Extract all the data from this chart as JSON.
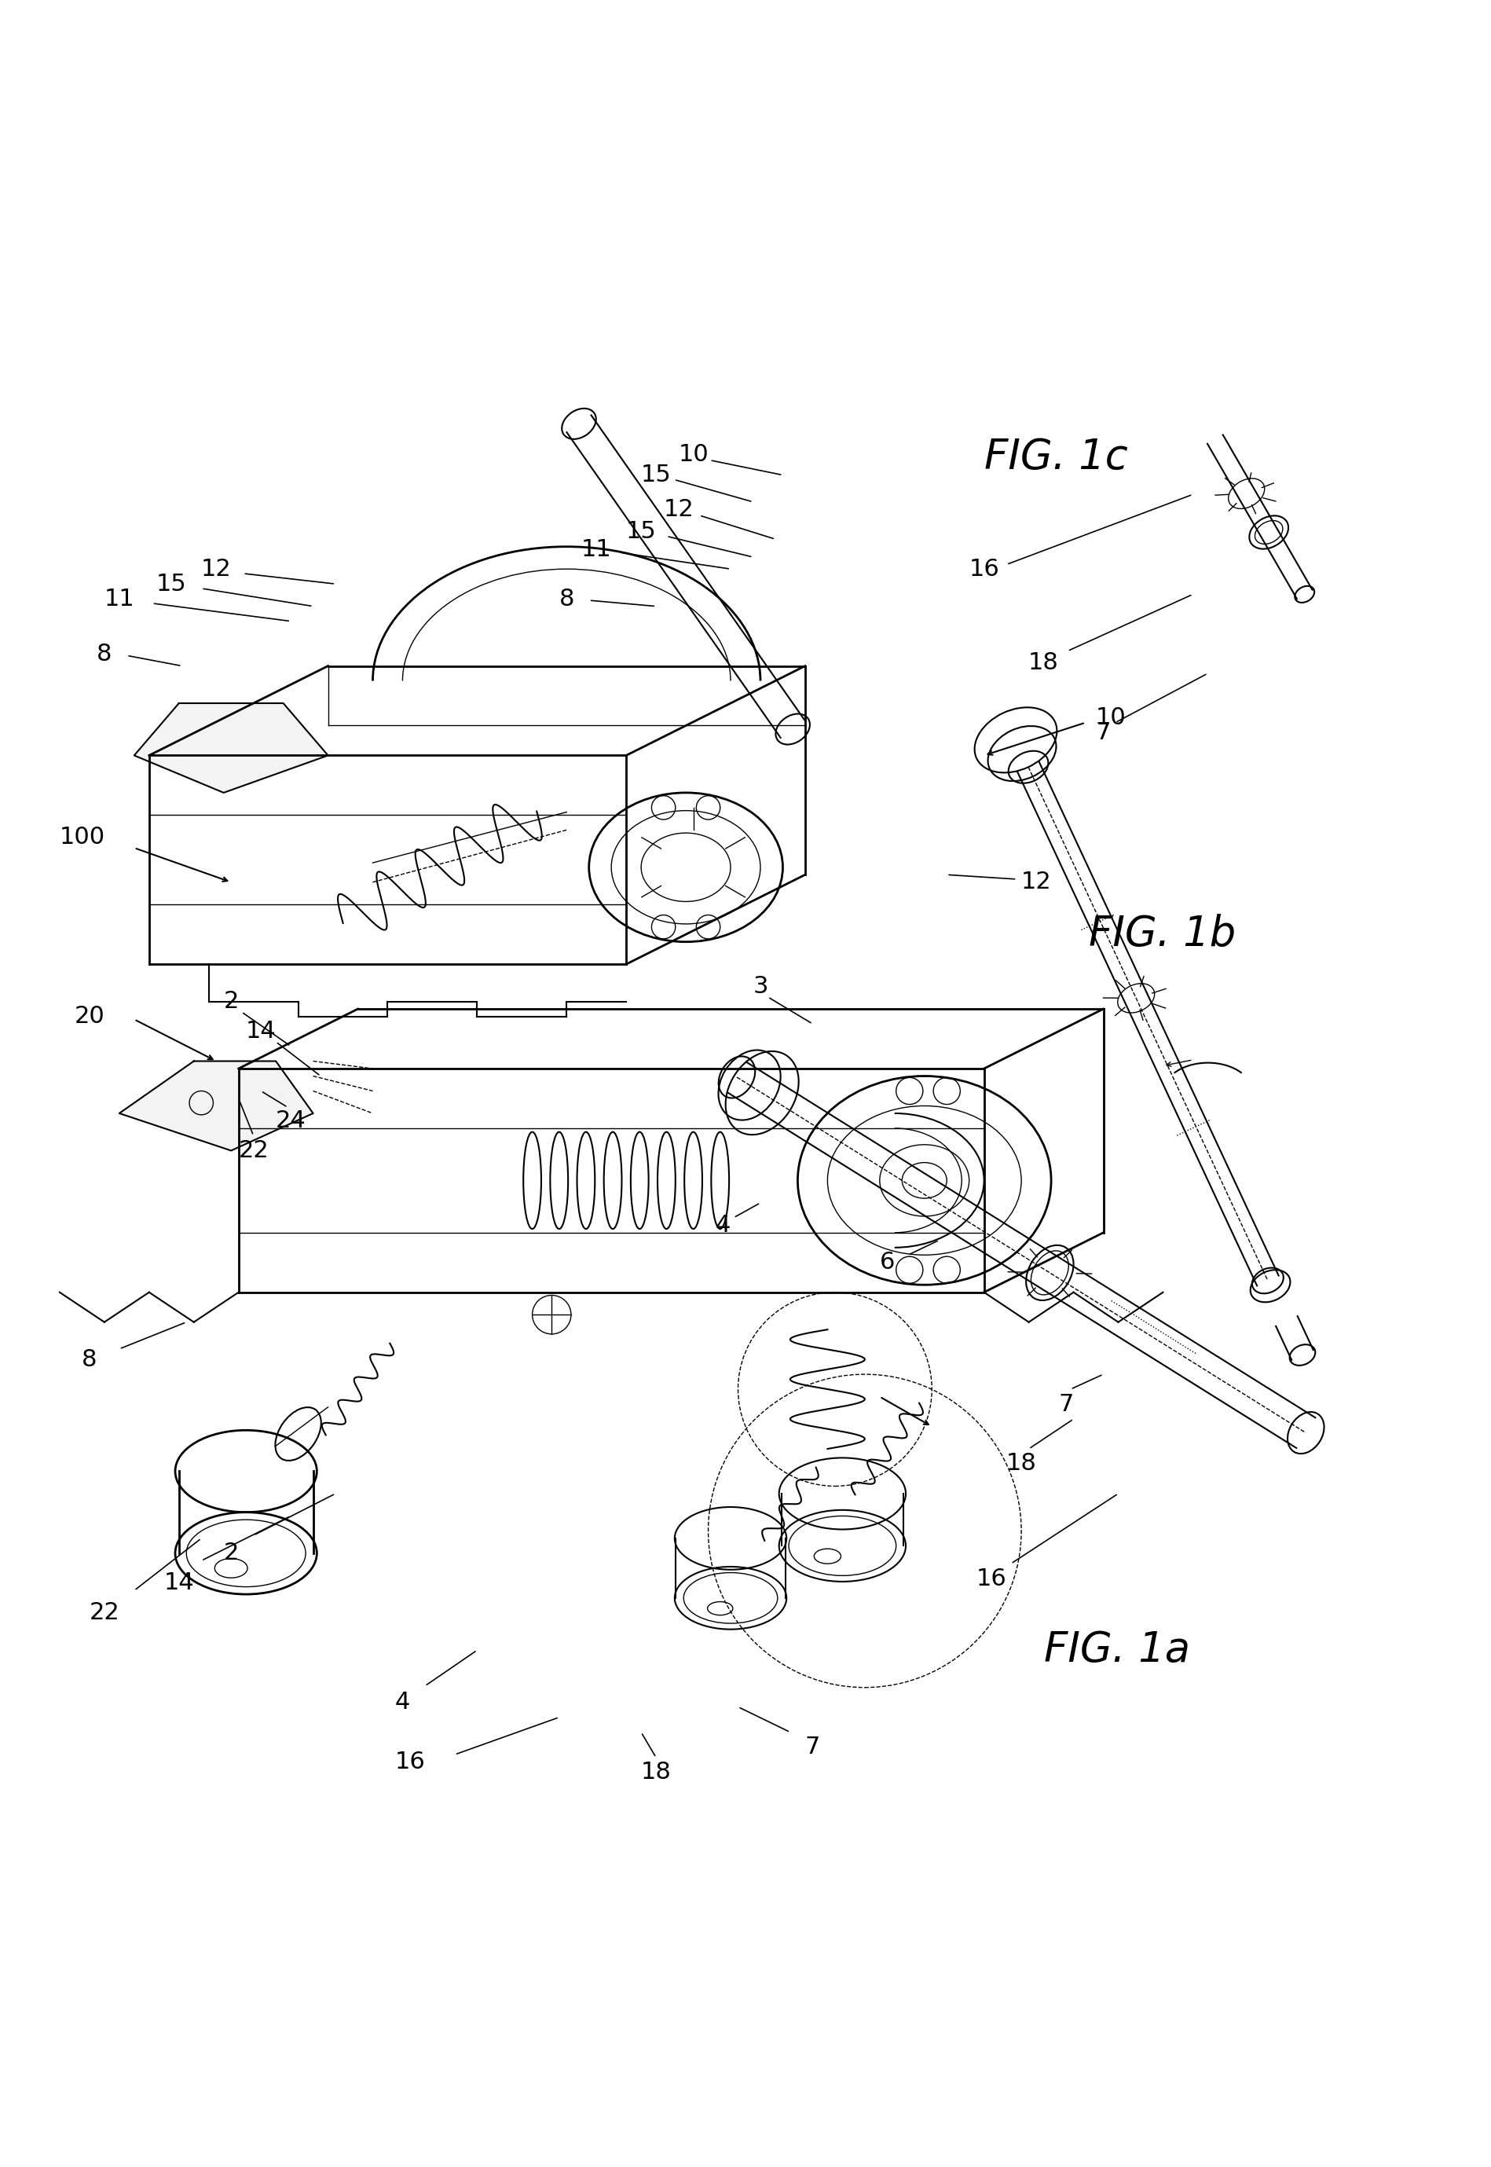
{
  "fig_labels": [
    "FIG. 1a",
    "FIG. 1b",
    "FIG. 1c"
  ],
  "background_color": "#ffffff",
  "line_color": "#000000",
  "label_fontsize": 22,
  "fig_label_fontsize": 38
}
